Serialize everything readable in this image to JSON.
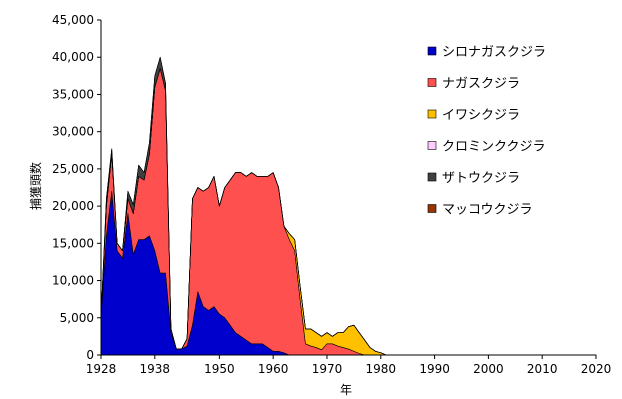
{
  "chart_data": {
    "type": "area",
    "stacked": true,
    "title": "",
    "xlabel": "年",
    "ylabel": "捕獲頭数",
    "xlim": [
      1928,
      2020
    ],
    "ylim": [
      0,
      45000
    ],
    "x_ticks": [
      1928,
      1938,
      1950,
      1960,
      1970,
      1980,
      1990,
      2000,
      2010,
      2020
    ],
    "x_tick_labels": [
      "1928",
      "1938",
      "1950",
      "1960",
      "1970",
      "1980",
      "1990",
      "2000",
      "2010",
      "2020"
    ],
    "y_ticks": [
      0,
      5000,
      10000,
      15000,
      20000,
      25000,
      30000,
      35000,
      40000,
      45000
    ],
    "y_tick_labels": [
      "0",
      "5,000",
      "10,000",
      "15,000",
      "20,000",
      "25,000",
      "30,000",
      "35,000",
      "40,000",
      "45,000"
    ],
    "legend_position": "right",
    "x": [
      1928,
      1929,
      1930,
      1931,
      1932,
      1933,
      1934,
      1935,
      1936,
      1937,
      1938,
      1939,
      1940,
      1941,
      1942,
      1943,
      1944,
      1945,
      1946,
      1947,
      1948,
      1949,
      1950,
      1951,
      1952,
      1953,
      1954,
      1955,
      1956,
      1957,
      1958,
      1959,
      1960,
      1961,
      1962,
      1963,
      1964,
      1965,
      1966,
      1967,
      1968,
      1969,
      1970,
      1971,
      1972,
      1973,
      1974,
      1975,
      1976,
      1977,
      1978,
      1979,
      1980,
      1981,
      1982,
      1983,
      1984,
      1985,
      1986,
      1987,
      1988,
      1989,
      1990,
      1991,
      1992,
      1993,
      1994,
      1995,
      1996,
      1997,
      1998,
      1999,
      2000,
      2001,
      2002,
      2003,
      2004,
      2005,
      2006,
      2007,
      2008,
      2009,
      2010,
      2011,
      2012,
      2013,
      2014,
      2015,
      2016,
      2017,
      2018,
      2019,
      2020
    ],
    "series": [
      {
        "name": "シロナガスクジラ",
        "color": "#0000cc",
        "values": [
          5000,
          16000,
          22000,
          14000,
          13000,
          19000,
          13500,
          15500,
          15500,
          16000,
          14000,
          11000,
          11000,
          3000,
          800,
          800,
          1200,
          4000,
          8500,
          6500,
          6000,
          6500,
          5500,
          5000,
          4000,
          3000,
          2500,
          2000,
          1500,
          1500,
          1500,
          1000,
          500,
          500,
          300,
          0,
          0,
          0,
          0,
          0,
          0,
          0,
          0,
          0,
          0,
          0,
          0,
          0,
          0,
          0,
          0,
          0,
          0,
          0,
          0,
          0,
          0,
          0,
          0,
          0,
          0,
          0,
          0,
          0,
          0,
          0,
          0,
          0,
          0,
          0,
          0,
          0,
          0,
          0,
          0,
          0,
          0,
          0,
          0,
          0,
          0,
          0,
          0,
          0,
          0,
          0,
          0,
          0,
          0,
          0,
          0,
          0,
          0
        ]
      },
      {
        "name": "ナガスクジラ",
        "color": "#ff5050",
        "values": [
          0,
          4000,
          5000,
          1000,
          1000,
          2000,
          5500,
          8500,
          8000,
          11000,
          22000,
          27500,
          24500,
          500,
          0,
          0,
          1000,
          17000,
          14000,
          15500,
          16500,
          17500,
          14500,
          17500,
          19500,
          21500,
          22000,
          22000,
          23000,
          22500,
          22500,
          23000,
          24000,
          22000,
          17000,
          15500,
          14000,
          7500,
          1500,
          1200,
          1000,
          700,
          1500,
          1500,
          1200,
          1000,
          800,
          500,
          200,
          0,
          0,
          0,
          0,
          0,
          0,
          0,
          0,
          0,
          0,
          0,
          0,
          0,
          0,
          0,
          0,
          0,
          0,
          0,
          0,
          0,
          0,
          0,
          0,
          0,
          0,
          0,
          0,
          0,
          0,
          0,
          0,
          0,
          0,
          0,
          0,
          0,
          0,
          0,
          0,
          0,
          0,
          0,
          0
        ]
      },
      {
        "name": "イワシクジラ",
        "color": "#ffc000",
        "values": [
          0,
          0,
          0,
          0,
          0,
          0,
          0,
          0,
          0,
          0,
          0,
          0,
          0,
          0,
          0,
          0,
          0,
          0,
          0,
          0,
          0,
          0,
          0,
          0,
          0,
          0,
          0,
          0,
          0,
          0,
          0,
          0,
          0,
          0,
          0,
          800,
          1500,
          1800,
          2000,
          2300,
          2000,
          1800,
          1500,
          1000,
          1800,
          2000,
          3000,
          3500,
          2800,
          2000,
          1000,
          500,
          300,
          0,
          0,
          0,
          0,
          0,
          0,
          0,
          0,
          0,
          0,
          0,
          0,
          0,
          0,
          0,
          0,
          0,
          0,
          0,
          0,
          0,
          0,
          0,
          0,
          0,
          0,
          0,
          0,
          0,
          0,
          0,
          0,
          0,
          0,
          0,
          0,
          0,
          0,
          0,
          0
        ]
      },
      {
        "name": "クロミンククジラ",
        "color": "#ffccff",
        "values": [
          0,
          0,
          0,
          0,
          0,
          0,
          0,
          0,
          0,
          0,
          0,
          0,
          0,
          0,
          0,
          0,
          0,
          0,
          0,
          0,
          0,
          0,
          0,
          0,
          0,
          0,
          0,
          0,
          0,
          0,
          0,
          0,
          0,
          0,
          0,
          0,
          0,
          0,
          0,
          0,
          0,
          0,
          0,
          0,
          0,
          0,
          0,
          0,
          0,
          0,
          0,
          0,
          0,
          0,
          0,
          0,
          0,
          0,
          0,
          0,
          0,
          0,
          0,
          0,
          0,
          0,
          0,
          0,
          0,
          0,
          0,
          0,
          0,
          0,
          0,
          0,
          0,
          0,
          0,
          0,
          0,
          0,
          0,
          0,
          0,
          0,
          0,
          0,
          0,
          0,
          0,
          0,
          0
        ]
      },
      {
        "name": "ザトウクジラ",
        "color": "#404040",
        "values": [
          0,
          1000,
          700,
          0,
          0,
          1000,
          1200,
          1500,
          1000,
          1500,
          1500,
          1500,
          1000,
          0,
          0,
          0,
          0,
          0,
          0,
          0,
          0,
          0,
          0,
          0,
          0,
          0,
          0,
          0,
          0,
          0,
          0,
          0,
          0,
          0,
          0,
          0,
          0,
          0,
          0,
          0,
          0,
          0,
          0,
          0,
          0,
          0,
          0,
          0,
          0,
          0,
          0,
          0,
          0,
          0,
          0,
          0,
          0,
          0,
          0,
          0,
          0,
          0,
          0,
          0,
          0,
          0,
          0,
          0,
          0,
          0,
          0,
          0,
          0,
          0,
          0,
          0,
          0,
          0,
          0,
          0,
          0,
          0,
          0,
          0,
          0,
          0,
          0,
          0,
          0,
          0,
          0,
          0,
          0
        ]
      },
      {
        "name": "マッコウクジラ",
        "color": "#993300",
        "values": [
          0,
          0,
          0,
          0,
          0,
          0,
          0,
          0,
          0,
          0,
          0,
          0,
          0,
          0,
          0,
          0,
          0,
          0,
          0,
          0,
          0,
          0,
          0,
          0,
          0,
          0,
          0,
          0,
          0,
          0,
          0,
          0,
          0,
          0,
          0,
          0,
          0,
          0,
          0,
          0,
          0,
          0,
          0,
          0,
          0,
          0,
          0,
          0,
          0,
          0,
          0,
          0,
          0,
          0,
          0,
          0,
          0,
          0,
          0,
          0,
          0,
          0,
          0,
          0,
          0,
          0,
          0,
          0,
          0,
          0,
          0,
          0,
          0,
          0,
          0,
          0,
          0,
          0,
          0,
          0,
          0,
          0,
          0,
          0,
          0,
          0,
          0,
          0,
          0,
          0,
          0,
          0,
          0
        ]
      }
    ]
  }
}
